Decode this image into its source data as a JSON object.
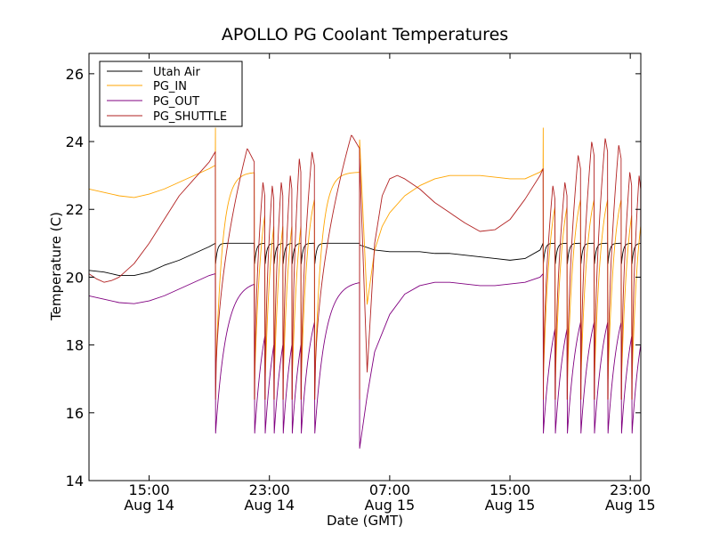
{
  "chart_data": {
    "type": "line",
    "title": "APOLLO PG Coolant Temperatures",
    "xlabel": "Date (GMT)",
    "ylabel": "Temperature (C)",
    "x_unit": "hours since 2024-08-14 11:00 GMT (x axis spans Aug 14 11:00 to Aug 15 23:40)",
    "xlim": [
      0,
      36.7
    ],
    "ylim": [
      14,
      26.6
    ],
    "yticks": [
      14,
      16,
      18,
      20,
      22,
      24,
      26
    ],
    "ytick_labels": [
      "14",
      "16",
      "18",
      "20",
      "22",
      "24",
      "26"
    ],
    "xticks": [
      {
        "x": 4,
        "time": "15:00",
        "date": "Aug 14"
      },
      {
        "x": 12,
        "time": "23:00",
        "date": "Aug 14"
      },
      {
        "x": 20,
        "time": "07:00",
        "date": "Aug 15"
      },
      {
        "x": 28,
        "time": "15:00",
        "date": "Aug 15"
      },
      {
        "x": 36,
        "time": "23:00",
        "date": "Aug 15"
      }
    ],
    "grid": false,
    "legend_position": "top-left",
    "series": [
      {
        "name": "Utah Air",
        "color": "#000000",
        "segments": [
          {
            "x": [
              0,
              1,
              2,
              3,
              4,
              5,
              6,
              7,
              8,
              8.4
            ],
            "y": [
              20.2,
              20.15,
              20.05,
              20.05,
              20.15,
              20.35,
              20.5,
              20.7,
              20.9,
              21.0
            ]
          },
          {
            "x": [
              18.0,
              19.0,
              20.0,
              21.0,
              22.0,
              23.0,
              24.0,
              25.0,
              26.0,
              27.0,
              28.0,
              29.0,
              30.0,
              30.2
            ],
            "y": [
              20.95,
              20.8,
              20.75,
              20.75,
              20.75,
              20.7,
              20.7,
              20.65,
              20.6,
              20.55,
              20.5,
              20.55,
              20.8,
              21.0
            ]
          }
        ],
        "cycles": {
          "starts": [
            8.4,
            11.0,
            11.7,
            12.3,
            12.9,
            13.5,
            14.1,
            15.0,
            30.2,
            31.0,
            31.8,
            32.7,
            33.6,
            34.5,
            35.4,
            36.1
          ],
          "ends": [
            11.0,
            11.7,
            12.3,
            12.9,
            13.5,
            14.1,
            15.0,
            18.0,
            31.0,
            31.8,
            32.7,
            33.6,
            34.5,
            35.4,
            36.1,
            36.7
          ],
          "low": 20.4,
          "high": 21.0,
          "recover_h": 0.12
        }
      },
      {
        "name": "PG_IN",
        "color": "#ffa500",
        "segments": [
          {
            "x": [
              0,
              1,
              2,
              3,
              4,
              5,
              6,
              7,
              8,
              8.4
            ],
            "y": [
              22.6,
              22.5,
              22.4,
              22.35,
              22.45,
              22.6,
              22.8,
              23.0,
              23.2,
              23.3
            ]
          },
          {
            "x": [
              18.0,
              18.5,
              19.0,
              19.5,
              20.0,
              21.0,
              22.0,
              23.0,
              24.0,
              25.0,
              26.0,
              27.0,
              28.0,
              29.0,
              30.0,
              30.2
            ],
            "y": [
              24.05,
              19.2,
              20.8,
              21.5,
              21.9,
              22.4,
              22.7,
              22.9,
              23.0,
              23.0,
              23.0,
              22.95,
              22.9,
              22.9,
              23.1,
              23.2
            ]
          }
        ],
        "cycles": {
          "starts": [
            8.4,
            11.0,
            11.7,
            12.3,
            12.9,
            13.5,
            14.1,
            15.0,
            30.2,
            31.0,
            31.8,
            32.7,
            33.6,
            34.5,
            35.4,
            36.1
          ],
          "ends": [
            11.0,
            11.7,
            12.3,
            12.9,
            13.5,
            14.1,
            15.0,
            18.0,
            31.0,
            31.8,
            32.7,
            33.6,
            34.5,
            35.4,
            36.1,
            36.7
          ],
          "spike": 24.4,
          "low": 17.0,
          "high": 23.1,
          "tau_h": 0.45
        }
      },
      {
        "name": "PG_OUT",
        "color": "#800080",
        "segments": [
          {
            "x": [
              0,
              1,
              2,
              3,
              4,
              5,
              6,
              7,
              8,
              8.4
            ],
            "y": [
              19.45,
              19.35,
              19.25,
              19.22,
              19.3,
              19.45,
              19.65,
              19.85,
              20.05,
              20.1
            ]
          },
          {
            "x": [
              18.0,
              18.5,
              19.0,
              20.0,
              21.0,
              22.0,
              23.0,
              24.0,
              25.0,
              26.0,
              27.0,
              28.0,
              29.0,
              30.0,
              30.2
            ],
            "y": [
              14.95,
              16.5,
              17.8,
              18.9,
              19.5,
              19.75,
              19.85,
              19.85,
              19.8,
              19.75,
              19.75,
              19.8,
              19.85,
              20.0,
              20.1
            ]
          }
        ],
        "cycles": {
          "starts": [
            8.4,
            11.0,
            11.7,
            12.3,
            12.9,
            13.5,
            14.1,
            15.0,
            30.2,
            31.0,
            31.8,
            32.7,
            33.6,
            34.5,
            35.4,
            36.1
          ],
          "ends": [
            11.0,
            11.7,
            12.3,
            12.9,
            13.5,
            14.1,
            15.0,
            18.0,
            31.0,
            31.8,
            32.7,
            33.6,
            34.5,
            35.4,
            36.1,
            36.7
          ],
          "low": 15.4,
          "high": 19.9,
          "tau_h": 0.7
        }
      },
      {
        "name": "PG_SHUTTLE",
        "color": "#b22222",
        "segments": [
          {
            "x": [
              0,
              0.5,
              1.0,
              1.5,
              2.0,
              3.0,
              4.0,
              5.0,
              6.0,
              7.0,
              8.0,
              8.4
            ],
            "y": [
              20.1,
              19.95,
              19.85,
              19.9,
              20.0,
              20.4,
              21.0,
              21.7,
              22.4,
              22.9,
              23.4,
              23.7
            ]
          },
          {
            "x": [
              18.0,
              18.5,
              19.0,
              19.5,
              20.0,
              20.5,
              21.0,
              22.0,
              23.0,
              24.0,
              25.0,
              26.0,
              27.0,
              28.0,
              29.0,
              30.0,
              30.2
            ],
            "y": [
              23.5,
              17.2,
              21.0,
              22.4,
              22.9,
              23.0,
              22.9,
              22.6,
              22.2,
              21.9,
              21.6,
              21.35,
              21.4,
              21.7,
              22.3,
              23.0,
              23.2
            ]
          }
        ],
        "cycles": {
          "starts": [
            8.4,
            11.0,
            11.7,
            12.3,
            12.9,
            13.5,
            14.1,
            15.0,
            30.2,
            31.0,
            31.8,
            32.7,
            33.6,
            34.5,
            35.4,
            36.1
          ],
          "ends": [
            11.0,
            11.7,
            12.3,
            12.9,
            13.5,
            14.1,
            15.0,
            18.0,
            31.0,
            31.8,
            32.7,
            33.6,
            34.5,
            35.4,
            36.1,
            36.7
          ],
          "low": 16.4,
          "peaks": [
            23.8,
            22.8,
            22.7,
            22.8,
            23.0,
            23.5,
            23.7,
            24.2,
            22.7,
            22.8,
            23.6,
            24.0,
            24.1,
            23.9,
            23.1,
            23.0
          ],
          "peak_end": 0.82
        }
      }
    ]
  }
}
